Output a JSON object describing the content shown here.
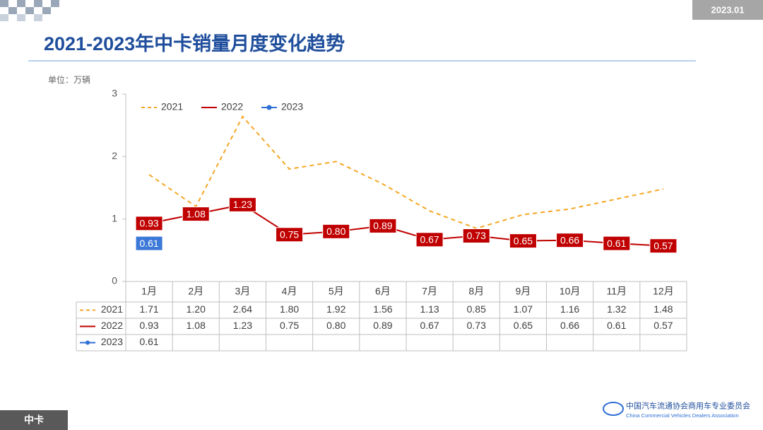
{
  "header": {
    "date": "2023.01",
    "title": "2021-2023年中卡销量月度变化趋势",
    "footer": "中卡",
    "org_cn": "中国汽车流通协会商用车专业委员会",
    "org_en": "China Commercial Vehicles Dealers Association"
  },
  "chart_data": {
    "type": "line",
    "unit_label": "单位：万辆",
    "categories": [
      "1月",
      "2月",
      "3月",
      "4月",
      "5月",
      "6月",
      "7月",
      "8月",
      "9月",
      "10月",
      "11月",
      "12月"
    ],
    "series": [
      {
        "name": "2021",
        "color": "#f5a623",
        "values": [
          1.71,
          1.2,
          2.64,
          1.8,
          1.92,
          1.56,
          1.13,
          0.85,
          1.07,
          1.16,
          1.32,
          1.48
        ],
        "value_labels": [
          "1.71",
          "1.20",
          "2.64",
          "1.80",
          "1.92",
          "1.56",
          "1.13",
          "0.85",
          "1.07",
          "1.16",
          "1.32",
          "1.48"
        ]
      },
      {
        "name": "2022",
        "color": "#c00000",
        "values": [
          0.93,
          1.08,
          1.23,
          0.75,
          0.8,
          0.89,
          0.67,
          0.73,
          0.65,
          0.66,
          0.61,
          0.57
        ],
        "value_labels": [
          "0.93",
          "1.08",
          "1.23",
          "0.75",
          "0.80",
          "0.89",
          "0.67",
          "0.73",
          "0.65",
          "0.66",
          "0.61",
          "0.57"
        ]
      },
      {
        "name": "2023",
        "color": "#2f6fd6",
        "values": [
          0.61,
          null,
          null,
          null,
          null,
          null,
          null,
          null,
          null,
          null,
          null,
          null
        ],
        "value_labels": [
          "0.61",
          null,
          null,
          null,
          null,
          null,
          null,
          null,
          null,
          null,
          null,
          null
        ]
      }
    ],
    "ylim": [
      0,
      3
    ],
    "yticks": [
      0,
      1,
      2,
      3
    ],
    "legend": "top-left"
  }
}
